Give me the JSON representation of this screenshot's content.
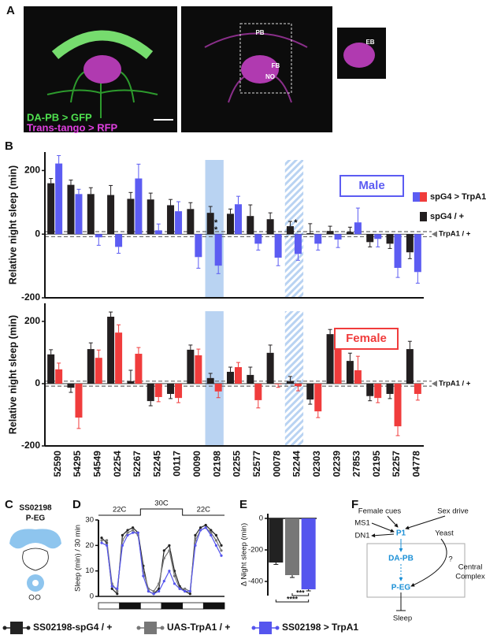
{
  "panel_labels": [
    "A",
    "B",
    "C",
    "D",
    "E",
    "F"
  ],
  "panel_a": {
    "labels": [
      "DA-PB > GFP",
      "Trans-tango > RFP"
    ],
    "regions": [
      "PB",
      "FB",
      "NO"
    ],
    "inset": "EB"
  },
  "chart_data": [
    {
      "type": "bar",
      "label": "Male",
      "ylabel": "Relative night sleep (min)",
      "ylim": [
        -200,
        258
      ],
      "yticks": [
        -200,
        0,
        200
      ],
      "reference_band": [
        -8,
        8
      ],
      "reference_label": "TrpA1 / +",
      "highlight": [
        8
      ],
      "highlight_hatched": [
        12
      ],
      "annotations": [
        {
          "index": 8,
          "text": [
            "*",
            "*"
          ]
        },
        {
          "index": 12,
          "text": [
            "*"
          ]
        }
      ],
      "series": [
        {
          "name": "spG4 / +",
          "color": "#231f20",
          "values": [
            160,
            155,
            126,
            123,
            111,
            109,
            91,
            79,
            67,
            64,
            57,
            47,
            25,
            3,
            10,
            7,
            -25,
            -30,
            -57
          ],
          "errors": [
            15,
            15,
            20,
            30,
            20,
            20,
            18,
            20,
            20,
            15,
            35,
            20,
            15,
            30,
            15,
            15,
            15,
            15,
            20
          ]
        },
        {
          "name": "spG4 > TrpA1",
          "color": "#5c5cf2",
          "values": [
            222,
            126,
            -10,
            -40,
            175,
            12,
            72,
            -72,
            -99,
            94,
            -30,
            -74,
            -62,
            -30,
            -17,
            37,
            -15,
            -106,
            -119
          ],
          "errors": [
            25,
            15,
            25,
            20,
            45,
            20,
            30,
            35,
            25,
            25,
            20,
            25,
            20,
            20,
            25,
            45,
            25,
            30,
            35
          ]
        }
      ]
    },
    {
      "type": "bar",
      "label": "Female",
      "ylabel": "Relative night sleep (min)",
      "ylim": [
        -200,
        258
      ],
      "yticks": [
        -200,
        0,
        200
      ],
      "reference_band": [
        -8,
        8
      ],
      "reference_label": "TrpA1 / +",
      "highlight": [
        8
      ],
      "highlight_hatched": [
        12
      ],
      "categories": [
        "52590",
        "54295",
        "54549",
        "02254",
        "52267",
        "52245",
        "00117",
        "00090",
        "02198",
        "02255",
        "52577",
        "00078",
        "52244",
        "02303",
        "02239",
        "27853",
        "02195",
        "52257",
        "04778"
      ],
      "series": [
        {
          "color": "#231f20",
          "values": [
            94,
            -13,
            111,
            215,
            8,
            -56,
            -33,
            109,
            18,
            38,
            28,
            99,
            8,
            -51,
            159,
            73,
            -40,
            -33,
            111
          ],
          "errors": [
            15,
            15,
            20,
            15,
            35,
            15,
            15,
            15,
            15,
            15,
            25,
            25,
            15,
            15,
            15,
            25,
            15,
            15,
            25
          ]
        },
        {
          "color": "#f03c3c",
          "values": [
            46,
            -109,
            83,
            164,
            96,
            -43,
            -46,
            91,
            -25,
            53,
            -53,
            -2,
            -8,
            -89,
            149,
            43,
            -46,
            -137,
            -33
          ],
          "errors": [
            20,
            35,
            25,
            25,
            20,
            15,
            15,
            20,
            20,
            15,
            25,
            10,
            15,
            20,
            20,
            45,
            15,
            30,
            20
          ]
        }
      ]
    },
    {
      "type": "line",
      "ylabel": "Sleep (min) / 30 min",
      "ylim": [
        0,
        30
      ],
      "yticks": [
        0,
        10,
        20,
        30
      ],
      "temperature_periods": [
        "22C",
        "30C",
        "22C"
      ],
      "light_dark": [
        "light",
        "dark",
        "light",
        "dark",
        "light",
        "dark"
      ],
      "series": [
        {
          "name": "SS02198-spG4 / +",
          "color": "#222222",
          "values": [
            23,
            21,
            3,
            1,
            24,
            26,
            27,
            25,
            12,
            2,
            1,
            3,
            18,
            20,
            10,
            4,
            2,
            1,
            24,
            27,
            28,
            26,
            24,
            20
          ]
        },
        {
          "name": "UAS-TrpA1 / +",
          "color": "#777777",
          "values": [
            22,
            22,
            5,
            2,
            22,
            25,
            26,
            24,
            10,
            3,
            2,
            5,
            15,
            18,
            8,
            3,
            3,
            2,
            22,
            26,
            27,
            25,
            22,
            18
          ]
        },
        {
          "name": "SS02198 > TrpA1",
          "color": "#5555ee",
          "values": [
            21,
            20,
            4,
            3,
            20,
            24,
            25,
            25,
            8,
            2,
            1,
            2,
            6,
            10,
            5,
            3,
            2,
            2,
            20,
            26,
            27,
            24,
            20,
            16
          ]
        }
      ]
    },
    {
      "type": "bar",
      "ylabel": "Δ Night sleep (min)",
      "ylim": [
        -490,
        30
      ],
      "yticks": [
        0,
        -200,
        -400
      ],
      "values": [
        -280,
        -360,
        -450
      ],
      "errors": [
        12,
        15,
        10
      ],
      "colors": [
        "#222222",
        "#777777",
        "#5555ee"
      ],
      "significance": [
        {
          "text": "****",
          "from": 0,
          "to": 2
        },
        {
          "text": "***",
          "from": 1,
          "to": 2
        }
      ]
    }
  ],
  "panel_c": {
    "title": [
      "SS02198",
      "P-EG"
    ]
  },
  "panel_f": {
    "female_cues": "Female cues",
    "sex_drive": "Sex drive",
    "ms1": "MS1",
    "dn1": "DN1",
    "p1": "P1",
    "yeast": "Yeast",
    "da_pb": "DA-PB",
    "question": "?",
    "central_complex": [
      "Central",
      "Complex"
    ],
    "p_eg": "P-EG",
    "sleep": "Sleep"
  }
}
